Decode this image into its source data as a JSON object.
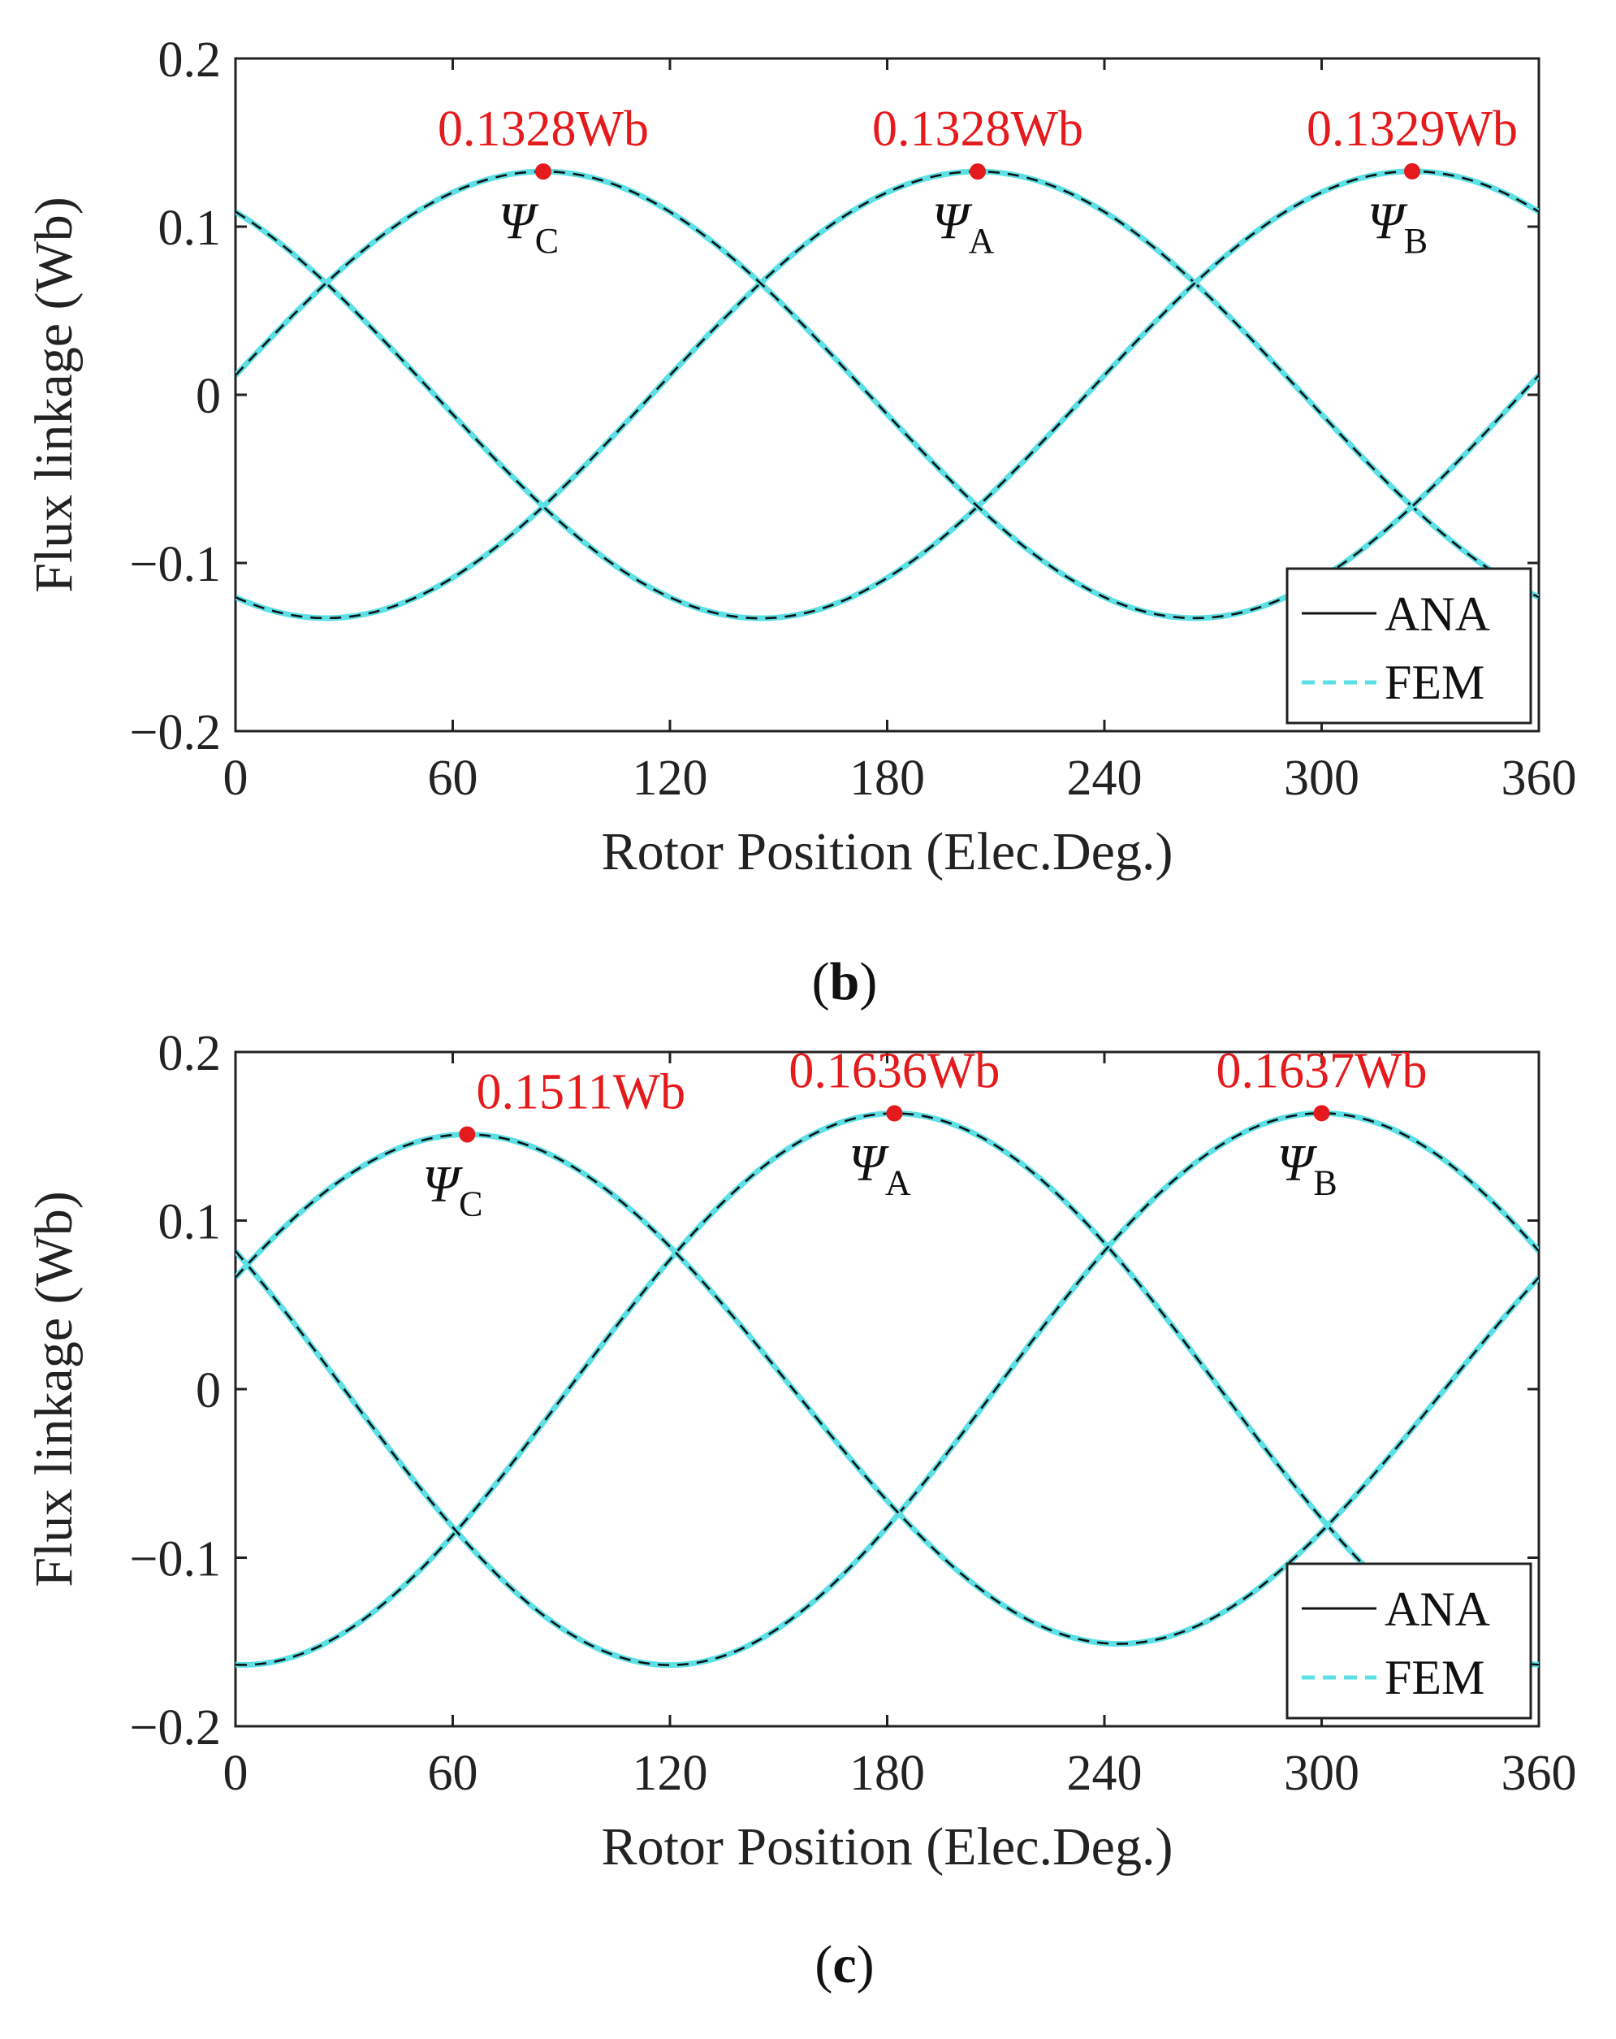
{
  "chart_data": [
    {
      "type": "line",
      "panel_label": "b",
      "xlabel": "Rotor Position (Elec.Deg.)",
      "ylabel": "Flux  linkage (Wb)",
      "xlim": [
        0,
        360
      ],
      "ylim": [
        -0.2,
        0.2
      ],
      "xticks": [
        0,
        60,
        120,
        180,
        240,
        300,
        360
      ],
      "yticks": [
        -0.2,
        -0.1,
        0,
        0.1,
        0.2
      ],
      "ytick_labels": [
        "−0.2",
        "−0.1",
        "0",
        "0.1",
        "0.2"
      ],
      "grid": false,
      "legend": {
        "position": "bottom-right",
        "entries": [
          "ANA",
          "FEM"
        ]
      },
      "series": [
        {
          "name": "ΨA",
          "model": "sinusoid",
          "amplitude": 0.1328,
          "peak_x": 205
        },
        {
          "name": "ΨB",
          "model": "sinusoid",
          "amplitude": 0.1329,
          "peak_x": 325
        },
        {
          "name": "ΨC",
          "model": "sinusoid",
          "amplitude": 0.1328,
          "peak_x": 85
        }
      ],
      "annotations": [
        {
          "phase": "Ψ",
          "sub": "C",
          "value_label": "0.1328Wb",
          "x": 85,
          "y": 0.1328
        },
        {
          "phase": "Ψ",
          "sub": "A",
          "value_label": "0.1328Wb",
          "x": 205,
          "y": 0.1328
        },
        {
          "phase": "Ψ",
          "sub": "B",
          "value_label": "0.1329Wb",
          "x": 325,
          "y": 0.1329
        }
      ]
    },
    {
      "type": "line",
      "panel_label": "c",
      "xlabel": "Rotor Position (Elec.Deg.)",
      "ylabel": "Flux  linkage (Wb)",
      "xlim": [
        0,
        360
      ],
      "ylim": [
        -0.2,
        0.2
      ],
      "xticks": [
        0,
        60,
        120,
        180,
        240,
        300,
        360
      ],
      "yticks": [
        -0.2,
        -0.1,
        0,
        0.1,
        0.2
      ],
      "ytick_labels": [
        "−0.2",
        "−0.1",
        "0",
        "0.1",
        "0.2"
      ],
      "grid": false,
      "legend": {
        "position": "bottom-right",
        "entries": [
          "ANA",
          "FEM"
        ]
      },
      "series": [
        {
          "name": "ΨA",
          "model": "sinusoid",
          "amplitude": 0.1636,
          "peak_x": 182,
          "offset": 0.0
        },
        {
          "name": "ΨB",
          "model": "sinusoid",
          "amplitude": 0.1637,
          "peak_x": 300,
          "offset": 0.0
        },
        {
          "name": "ΨC",
          "model": "sinusoid",
          "amplitude": 0.1511,
          "peak_x": 64,
          "offset": 0.0
        }
      ],
      "annotations": [
        {
          "phase": "Ψ",
          "sub": "C",
          "value_label": "0.1511Wb",
          "x": 64,
          "y": 0.1511
        },
        {
          "phase": "Ψ",
          "sub": "A",
          "value_label": "0.1636Wb",
          "x": 182,
          "y": 0.1636
        },
        {
          "phase": "Ψ",
          "sub": "B",
          "value_label": "0.1637Wb",
          "x": 300,
          "y": 0.1637
        }
      ]
    }
  ],
  "colors": {
    "ana_line": "#111111",
    "fem_line": "#5ce0e6",
    "marker": "#e41a1c",
    "axis": "#222222"
  }
}
